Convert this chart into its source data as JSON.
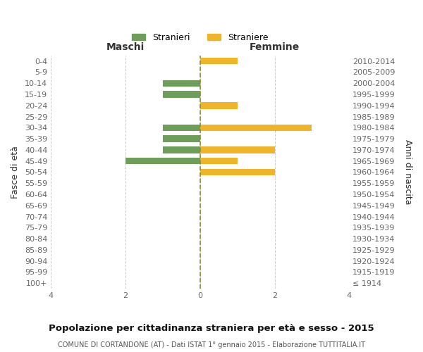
{
  "age_groups": [
    "100+",
    "95-99",
    "90-94",
    "85-89",
    "80-84",
    "75-79",
    "70-74",
    "65-69",
    "60-64",
    "55-59",
    "50-54",
    "45-49",
    "40-44",
    "35-39",
    "30-34",
    "25-29",
    "20-24",
    "15-19",
    "10-14",
    "5-9",
    "0-4"
  ],
  "birth_years": [
    "≤ 1914",
    "1915-1919",
    "1920-1924",
    "1925-1929",
    "1930-1934",
    "1935-1939",
    "1940-1944",
    "1945-1949",
    "1950-1954",
    "1955-1959",
    "1960-1964",
    "1965-1969",
    "1970-1974",
    "1975-1979",
    "1980-1984",
    "1985-1989",
    "1990-1994",
    "1995-1999",
    "2000-2004",
    "2005-2009",
    "2010-2014"
  ],
  "males": [
    0,
    0,
    0,
    0,
    0,
    0,
    0,
    0,
    0,
    0,
    0,
    2,
    1,
    1,
    1,
    0,
    0,
    1,
    1,
    0,
    0
  ],
  "females": [
    0,
    0,
    0,
    0,
    0,
    0,
    0,
    0,
    0,
    0,
    2,
    1,
    2,
    0,
    3,
    0,
    1,
    0,
    0,
    0,
    1
  ],
  "color_males": "#6d9e5a",
  "color_females": "#f0b429",
  "color_center_line": "#8c8c3a",
  "title": "Popolazione per cittadinanza straniera per età e sesso - 2015",
  "subtitle": "COMUNE DI CORTANDONE (AT) - Dati ISTAT 1° gennaio 2015 - Elaborazione TUTTITALIA.IT",
  "left_header": "Maschi",
  "right_header": "Femmine",
  "left_ylabel": "Fasce di età",
  "right_ylabel": "Anni di nascita",
  "legend_males": "Stranieri",
  "legend_females": "Straniere",
  "xlim": 4,
  "background_color": "#ffffff",
  "grid_color": "#cccccc"
}
